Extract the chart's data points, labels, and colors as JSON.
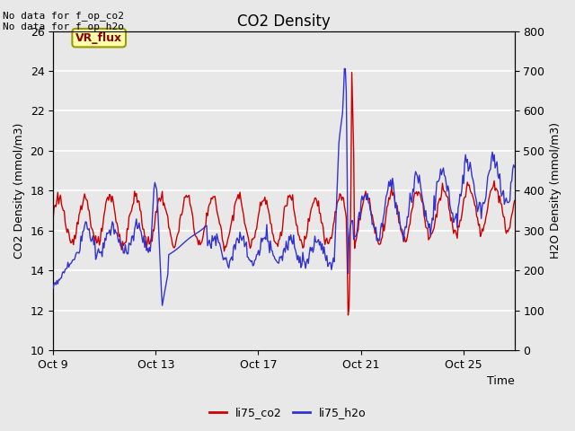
{
  "title": "CO2 Density",
  "xlabel": "Time",
  "ylabel_left": "CO2 Density (mmol/m3)",
  "ylabel_right": "H2O Density (mmol/m3)",
  "annotation_top": "No data for f_op_co2\nNo data for f_op_h2o",
  "vr_flux_label": "VR_flux",
  "legend_labels": [
    "li75_co2",
    "li75_h2o"
  ],
  "co2_color": "#cc0000",
  "h2o_color": "#3333cc",
  "ylim_left": [
    10,
    26
  ],
  "ylim_right": [
    0,
    800
  ],
  "plot_bg_color": "#e8e8e8",
  "fig_bg_color": "#e8e8e8",
  "x_ticks_labels": [
    "Oct 9",
    "Oct 13",
    "Oct 17",
    "Oct 21",
    "Oct 25"
  ],
  "x_ticks_pos": [
    0,
    4,
    8,
    12,
    16
  ],
  "title_fontsize": 12,
  "axis_label_fontsize": 9,
  "tick_label_fontsize": 9
}
